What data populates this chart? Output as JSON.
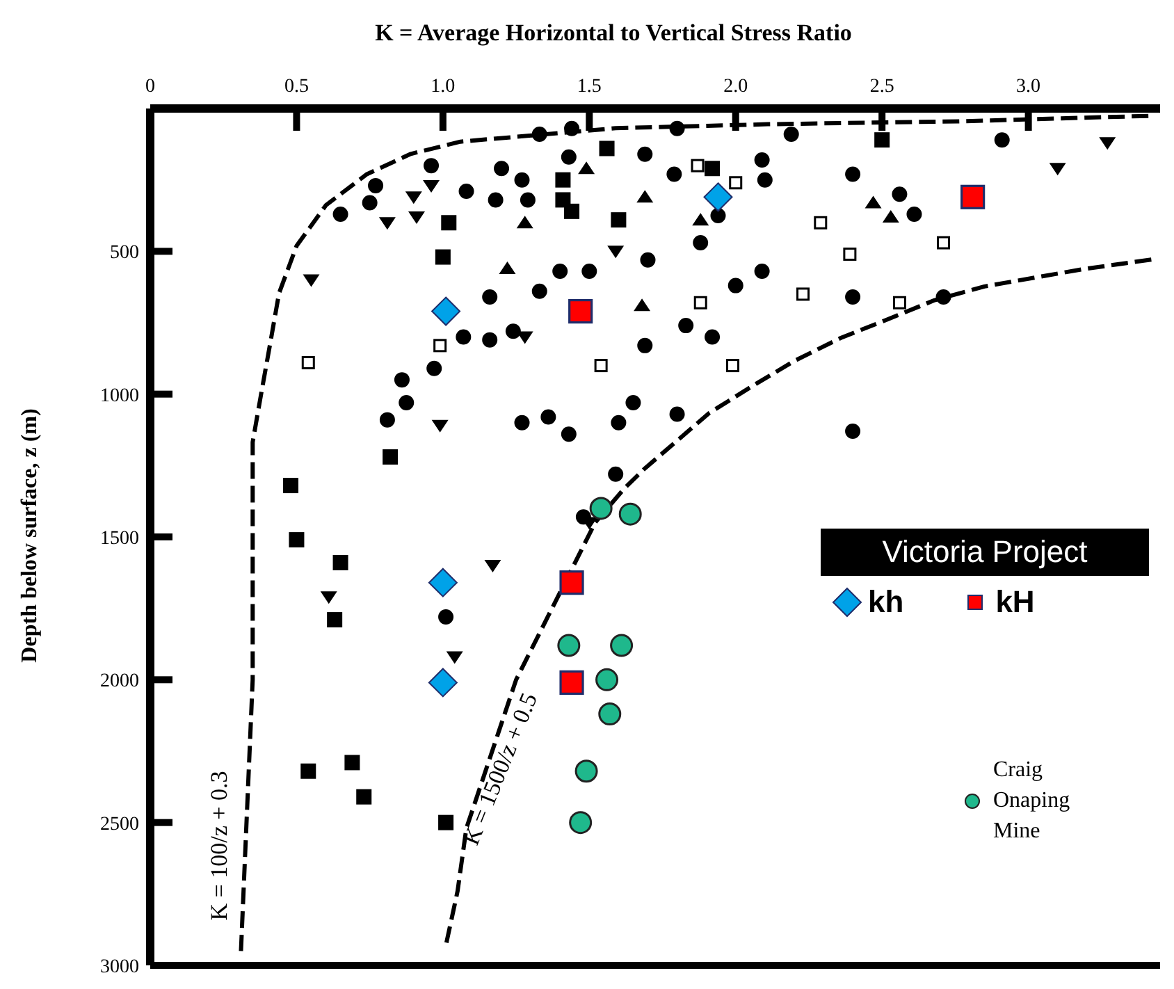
{
  "chart_data": {
    "type": "scatter",
    "xlabel": "K  = Average Horizontal to Vertical Stress Ratio",
    "ylabel": "Depth below surface, z (m)",
    "legend_title": "Victoria Project",
    "legend": "right",
    "grid": false,
    "xlim": [
      0,
      3.45
    ],
    "xticks": [
      0,
      0.5,
      {
        "value": 1,
        "label": "1.0"
      },
      1.5,
      {
        "value": 2,
        "label": "2.0"
      },
      2.5,
      {
        "value": 3,
        "label": "3.0"
      }
    ],
    "ylim": [
      3000,
      0
    ],
    "yticks": [
      500,
      1000,
      1500,
      2000,
      2500,
      3000
    ],
    "annotations": [
      "K = 100/z + 0.3",
      "K = 1500/z + 0.5"
    ],
    "series": [
      {
        "marker": "circle",
        "color": "#000000",
        "x": [
          1.33,
          1.44,
          0.96,
          1.2,
          1.27,
          1.43,
          0.77,
          1.08,
          1.18,
          1.29,
          0.75,
          0.65,
          1.4,
          1.5,
          1.33,
          1.16,
          1.07,
          1.16,
          1.24,
          0.97,
          0.86,
          0.875,
          1.65,
          1.69,
          0.81,
          1.27,
          1.36,
          1.43,
          1.6,
          1.59,
          1.48,
          1.01,
          1.8,
          2.19,
          2.91,
          1.69,
          1.79,
          2.09,
          2.1,
          2.4,
          2.56,
          2.61,
          1.94,
          1.88,
          1.7,
          2.09,
          2.0,
          2.4,
          2.71,
          1.83,
          1.92,
          1.8,
          2.4
        ],
        "values": [
          90,
          70,
          200,
          210,
          250,
          170,
          270,
          290,
          320,
          320,
          330,
          370,
          570,
          570,
          640,
          660,
          800,
          810,
          780,
          910,
          950,
          1030,
          1030,
          830,
          1090,
          1100,
          1080,
          1140,
          1100,
          1280,
          1430,
          1780,
          70,
          90,
          110,
          160,
          230,
          180,
          250,
          230,
          300,
          370,
          375,
          470,
          530,
          570,
          620,
          660,
          660,
          760,
          800,
          1070,
          1130
        ]
      },
      {
        "marker": "square",
        "color": "#000000",
        "x": [
          1.56,
          1.41,
          1.41,
          1.44,
          1.6,
          1.02,
          1.0,
          1.92,
          2.5,
          0.82,
          0.48,
          0.5,
          0.65,
          0.63,
          0.54,
          0.69,
          0.73,
          1.01
        ],
        "values": [
          140,
          250,
          320,
          360,
          390,
          400,
          520,
          210,
          110,
          1220,
          1320,
          1510,
          1590,
          1790,
          2320,
          2290,
          2410,
          2500
        ]
      },
      {
        "marker": "triangle",
        "color": "#000000",
        "x": [
          1.69,
          1.88,
          2.47,
          2.53,
          1.68,
          1.49,
          1.28,
          1.22
        ],
        "values": [
          310,
          390,
          330,
          380,
          690,
          210,
          400,
          560
        ]
      },
      {
        "marker": "triangle-down",
        "color": "#000000",
        "x": [
          3.1,
          3.27,
          0.96,
          0.9,
          0.81,
          0.91,
          1.59,
          0.55,
          1.28,
          0.99,
          0.61,
          1.17,
          1.04,
          1.5
        ],
        "values": [
          210,
          120,
          270,
          310,
          400,
          380,
          500,
          600,
          800,
          1110,
          1710,
          1600,
          1920,
          1450
        ]
      },
      {
        "marker": "square-open",
        "color": "#000000",
        "x": [
          0.54,
          0.99,
          1.54,
          1.87,
          2.0,
          2.29,
          2.39,
          2.71,
          1.88,
          2.23,
          2.56,
          1.99
        ],
        "values": [
          890,
          830,
          900,
          200,
          260,
          400,
          510,
          470,
          680,
          650,
          680,
          900
        ]
      },
      {
        "name": "kh",
        "marker": "diamond",
        "color": "#00a2e8",
        "x": [
          1.01,
          1.94,
          1.0,
          1.0
        ],
        "values": [
          710,
          310,
          1660,
          2010
        ]
      },
      {
        "name": "kH",
        "marker": "square",
        "color": "#ff0000",
        "x": [
          1.47,
          2.81,
          1.44,
          1.44
        ],
        "values": [
          710,
          310,
          1660,
          2010
        ]
      },
      {
        "name": "Craig Onaping Mine",
        "marker": "circle",
        "color": "#1fb88c",
        "x": [
          1.54,
          1.64,
          1.43,
          1.61,
          1.56,
          1.57,
          1.49,
          1.47
        ],
        "values": [
          1400,
          1420,
          1880,
          1880,
          2000,
          2120,
          2320,
          2500
        ]
      },
      {
        "type": "line",
        "line_style": "dashed",
        "marker": "none",
        "color": "#000000",
        "x": [
          3.41,
          2.76,
          2.11,
          1.59,
          1.06,
          0.89,
          0.74,
          0.6,
          0.5,
          0.44,
          0.41,
          0.38,
          0.35,
          0.35,
          0.35,
          0.31
        ],
        "values": [
          26,
          45,
          55,
          69,
          116,
          159,
          230,
          339,
          481,
          647,
          822,
          993,
          1168,
          1510,
          2000,
          2950
        ]
      },
      {
        "type": "line",
        "line_style": "dashed",
        "marker": "none",
        "color": "#000000",
        "x": [
          3.42,
          3.19,
          2.85,
          2.68,
          2.51,
          2.36,
          2.2,
          2.06,
          1.91,
          1.69,
          1.62,
          1.52,
          1.25,
          1.08,
          1.05,
          1.01
        ],
        "values": [
          529,
          562,
          623,
          671,
          742,
          803,
          884,
          970,
          1066,
          1260,
          1330,
          1450,
          2000,
          2520,
          2740,
          2930
        ]
      }
    ]
  }
}
